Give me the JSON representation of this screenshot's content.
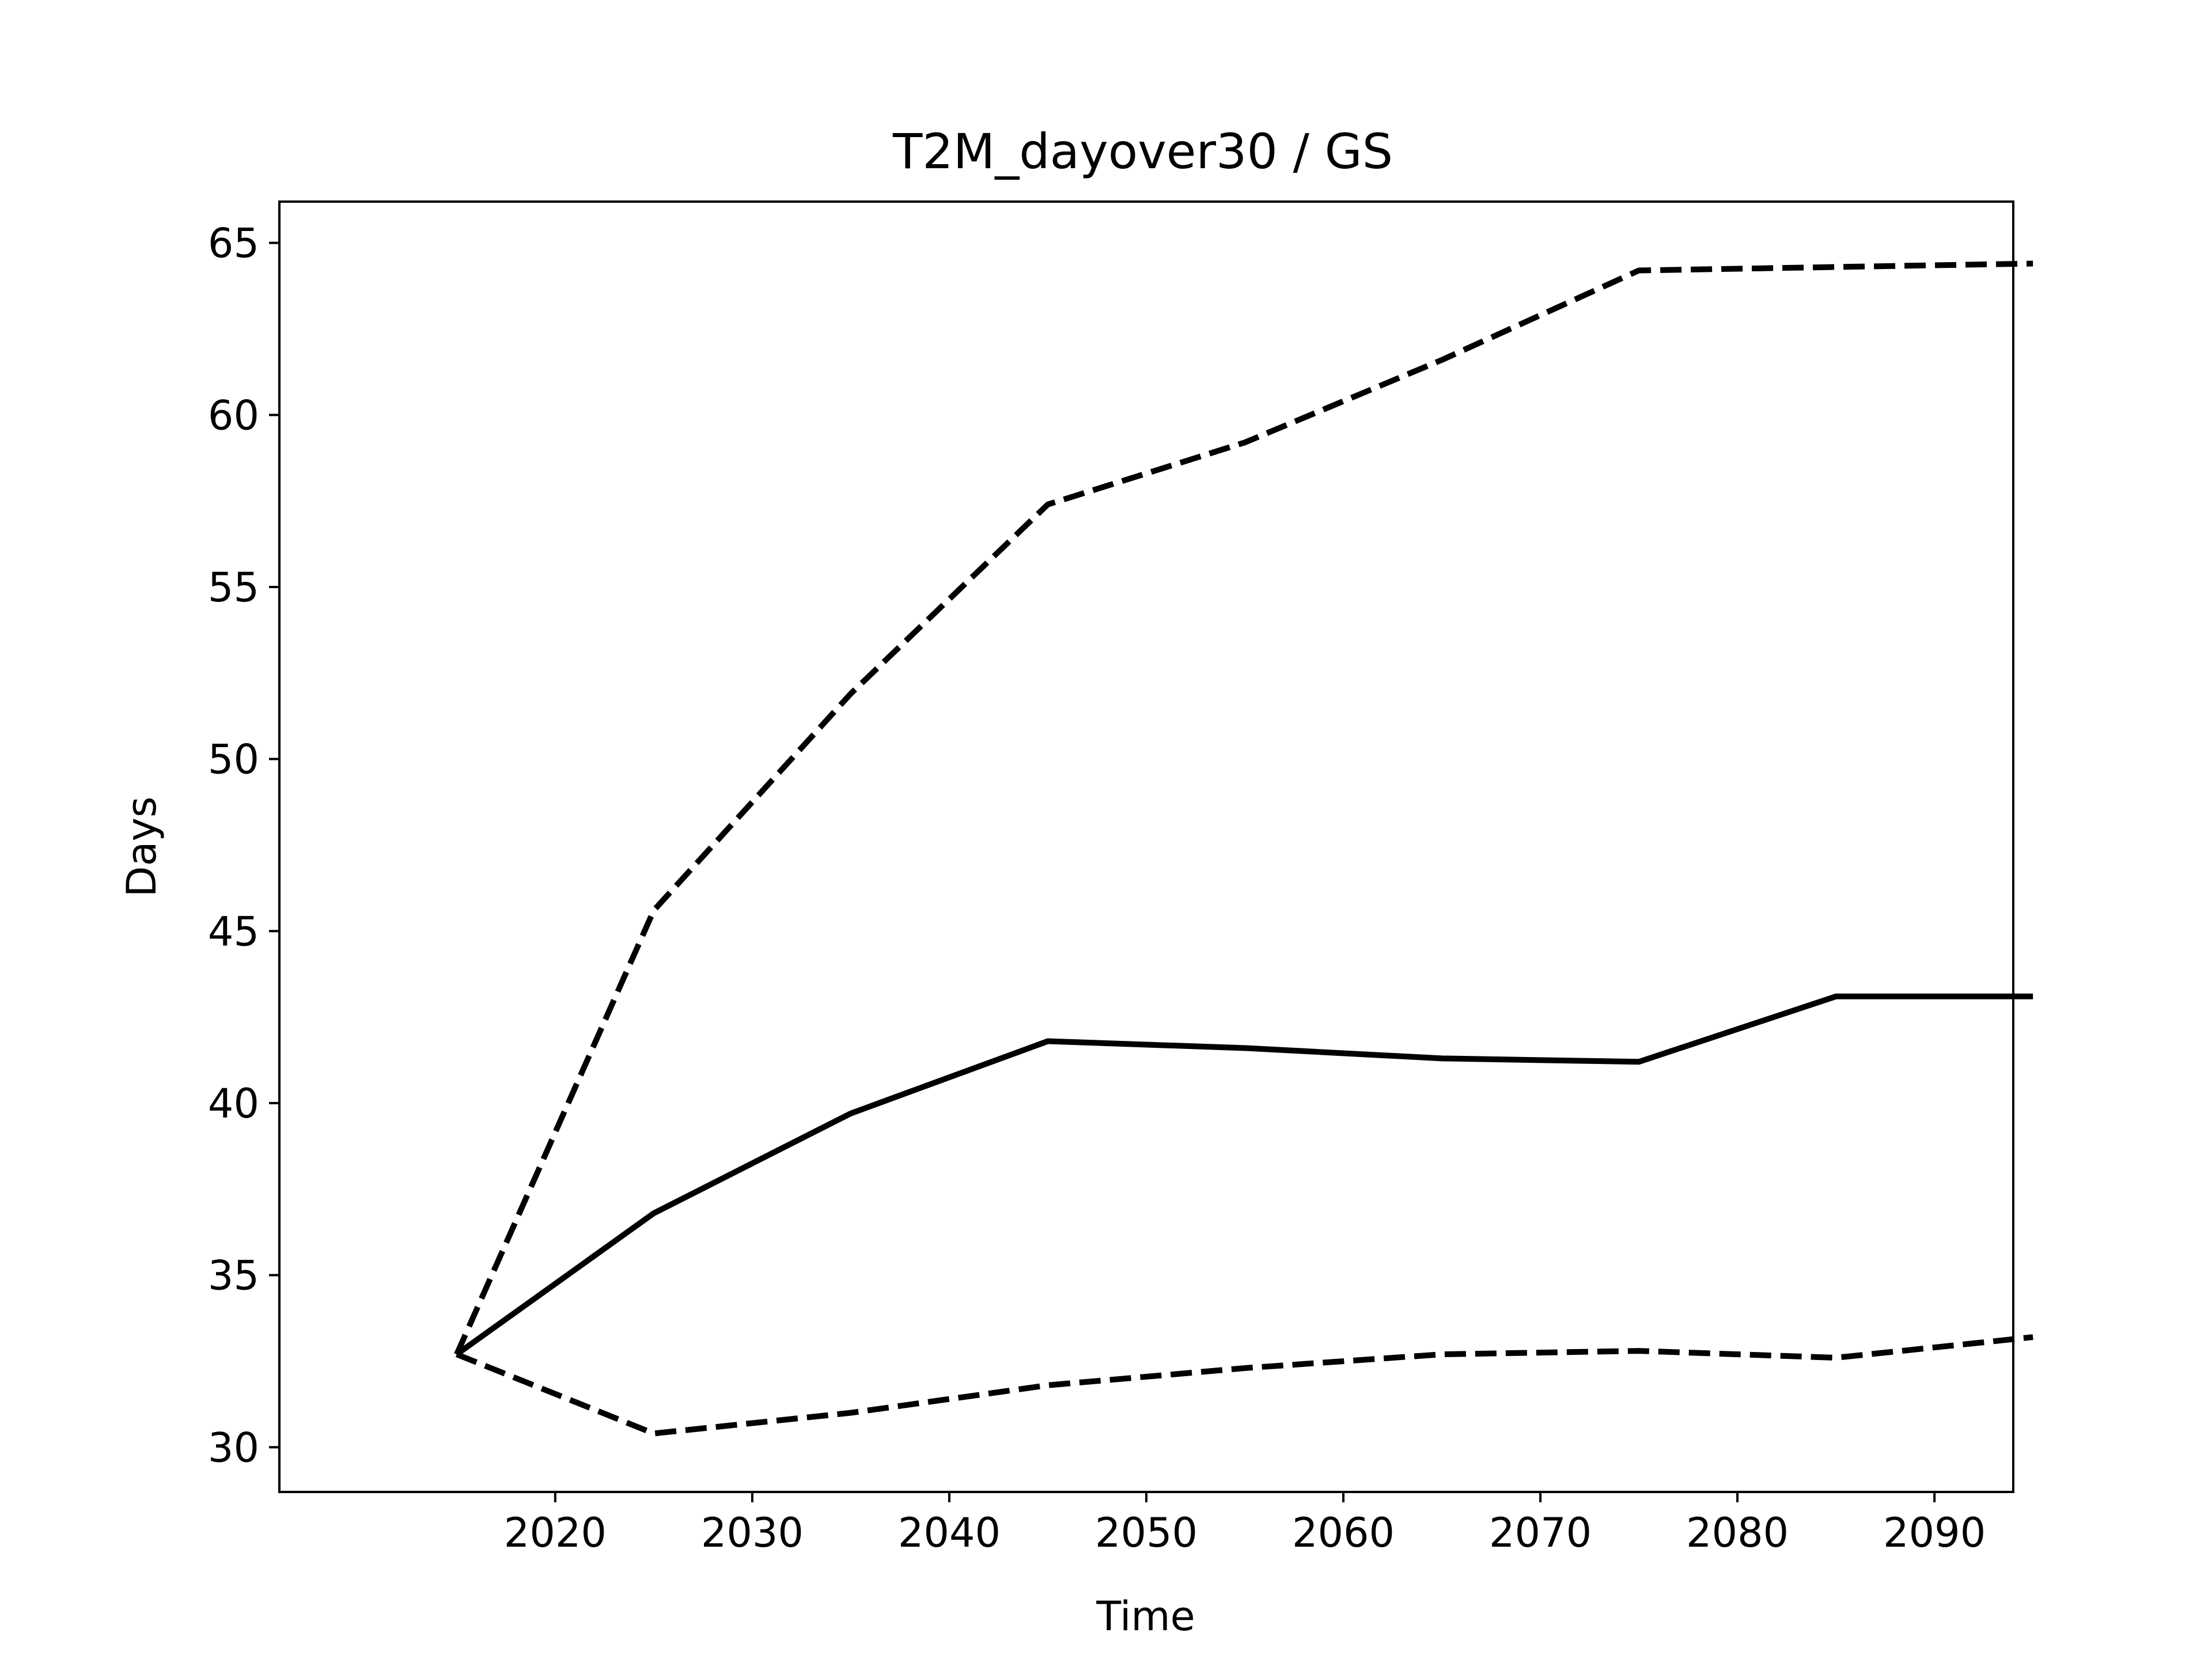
{
  "chart_data": {
    "type": "line",
    "title": "T2M_dayover30 / GS",
    "xlabel": "Time",
    "ylabel": "Days",
    "x": [
      2015,
      2025,
      2035,
      2045,
      2055,
      2065,
      2075,
      2085,
      2095
    ],
    "xlim": [
      2006,
      2094
    ],
    "ylim": [
      28.7,
      66.2
    ],
    "xticks": [
      2020,
      2030,
      2040,
      2050,
      2060,
      2070,
      2080,
      2090
    ],
    "yticks": [
      30,
      35,
      40,
      45,
      50,
      55,
      60,
      65
    ],
    "grid": false,
    "line_color": "#000000",
    "series": [
      {
        "style": "solid",
        "values": [
          32.7,
          36.8,
          39.7,
          41.8,
          41.6,
          41.3,
          41.2,
          43.1,
          43.1
        ]
      },
      {
        "style": "dashed",
        "values": [
          32.7,
          45.6,
          51.9,
          57.4,
          59.2,
          61.6,
          64.2,
          64.3,
          64.4
        ]
      },
      {
        "style": "dashed",
        "values": [
          32.7,
          30.4,
          31.0,
          31.8,
          32.3,
          32.7,
          32.8,
          32.6,
          33.2
        ]
      }
    ]
  }
}
